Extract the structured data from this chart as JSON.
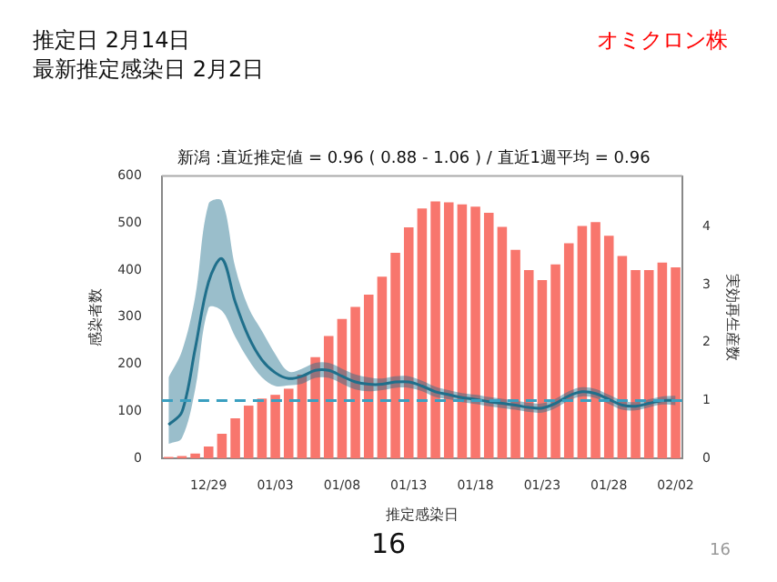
{
  "chart_data": {
    "type": "bar",
    "title": "新潟 :直近推定値 = 0.96 ( 0.88 - 1.06 ) / 直近1週平均 = 0.96",
    "xlabel": "推定感染日",
    "ylabel": "感染者数",
    "y2label": "実効再生産数",
    "annotations": [
      "推定日  2月14日",
      "最新推定感染日  2月2日",
      "オミクロン株",
      "16",
      "16"
    ],
    "categories": [
      null,
      null,
      null,
      "12/29",
      null,
      null,
      null,
      null,
      "01/03",
      null,
      null,
      null,
      null,
      "01/08",
      null,
      null,
      null,
      null,
      "01/13",
      null,
      null,
      null,
      null,
      "01/18",
      null,
      null,
      null,
      null,
      "01/23",
      null,
      null,
      null,
      null,
      "01/28",
      null,
      null,
      null,
      null,
      "02/02"
    ],
    "series": [
      {
        "color": "#f8766d",
        "values": [
          3,
          5,
          10,
          25,
          52,
          85,
          112,
          127,
          135,
          148,
          178,
          215,
          260,
          296,
          322,
          348,
          386,
          437,
          491,
          531,
          546,
          544,
          540,
          535,
          522,
          492,
          443,
          400,
          379,
          412,
          457,
          494,
          502,
          473,
          430,
          400,
          400,
          416,
          406
        ]
      },
      {
        "type": "line",
        "axis": "y2",
        "color": "#1f6f8b",
        "values": [
          0.58,
          0.8,
          1.9,
          3.05,
          3.45,
          2.7,
          2.1,
          1.7,
          1.48,
          1.38,
          1.42,
          1.52,
          1.52,
          1.42,
          1.32,
          1.28,
          1.28,
          1.32,
          1.32,
          1.25,
          1.15,
          1.1,
          1.05,
          1.02,
          0.98,
          0.95,
          0.92,
          0.88,
          0.87,
          0.95,
          1.08,
          1.15,
          1.12,
          1.02,
          0.92,
          0.9,
          0.95,
          1.0,
          1.0
        ],
        "upper": [
          1.4,
          1.85,
          2.8,
          4.4,
          4.45,
          3.3,
          2.6,
          2.2,
          1.8,
          1.5,
          1.55,
          1.65,
          1.65,
          1.55,
          1.45,
          1.4,
          1.38,
          1.42,
          1.42,
          1.34,
          1.24,
          1.18,
          1.13,
          1.1,
          1.06,
          1.03,
          1.0,
          0.96,
          0.95,
          1.03,
          1.16,
          1.23,
          1.2,
          1.1,
          1.0,
          0.97,
          1.02,
          1.07,
          1.08
        ],
        "lower": [
          0.25,
          0.35,
          1.2,
          2.6,
          2.55,
          2.1,
          1.7,
          1.4,
          1.25,
          1.26,
          1.29,
          1.39,
          1.39,
          1.29,
          1.19,
          1.16,
          1.18,
          1.22,
          1.22,
          1.16,
          1.06,
          1.02,
          0.97,
          0.94,
          0.9,
          0.87,
          0.84,
          0.8,
          0.79,
          0.87,
          1.0,
          1.07,
          1.04,
          0.94,
          0.84,
          0.83,
          0.88,
          0.93,
          0.92
        ]
      }
    ],
    "ylim": [
      0,
      600
    ],
    "yticks": [
      0,
      100,
      200,
      300,
      400,
      500,
      600
    ],
    "y2lim": [
      0,
      4.88
    ],
    "y2ticks": [
      0,
      1,
      2,
      3,
      4
    ],
    "marker": "none",
    "ref_lines": [
      {
        "axis": "y2",
        "value": 1,
        "color": "#3a9fc0",
        "line_style": "dashed"
      }
    ]
  }
}
